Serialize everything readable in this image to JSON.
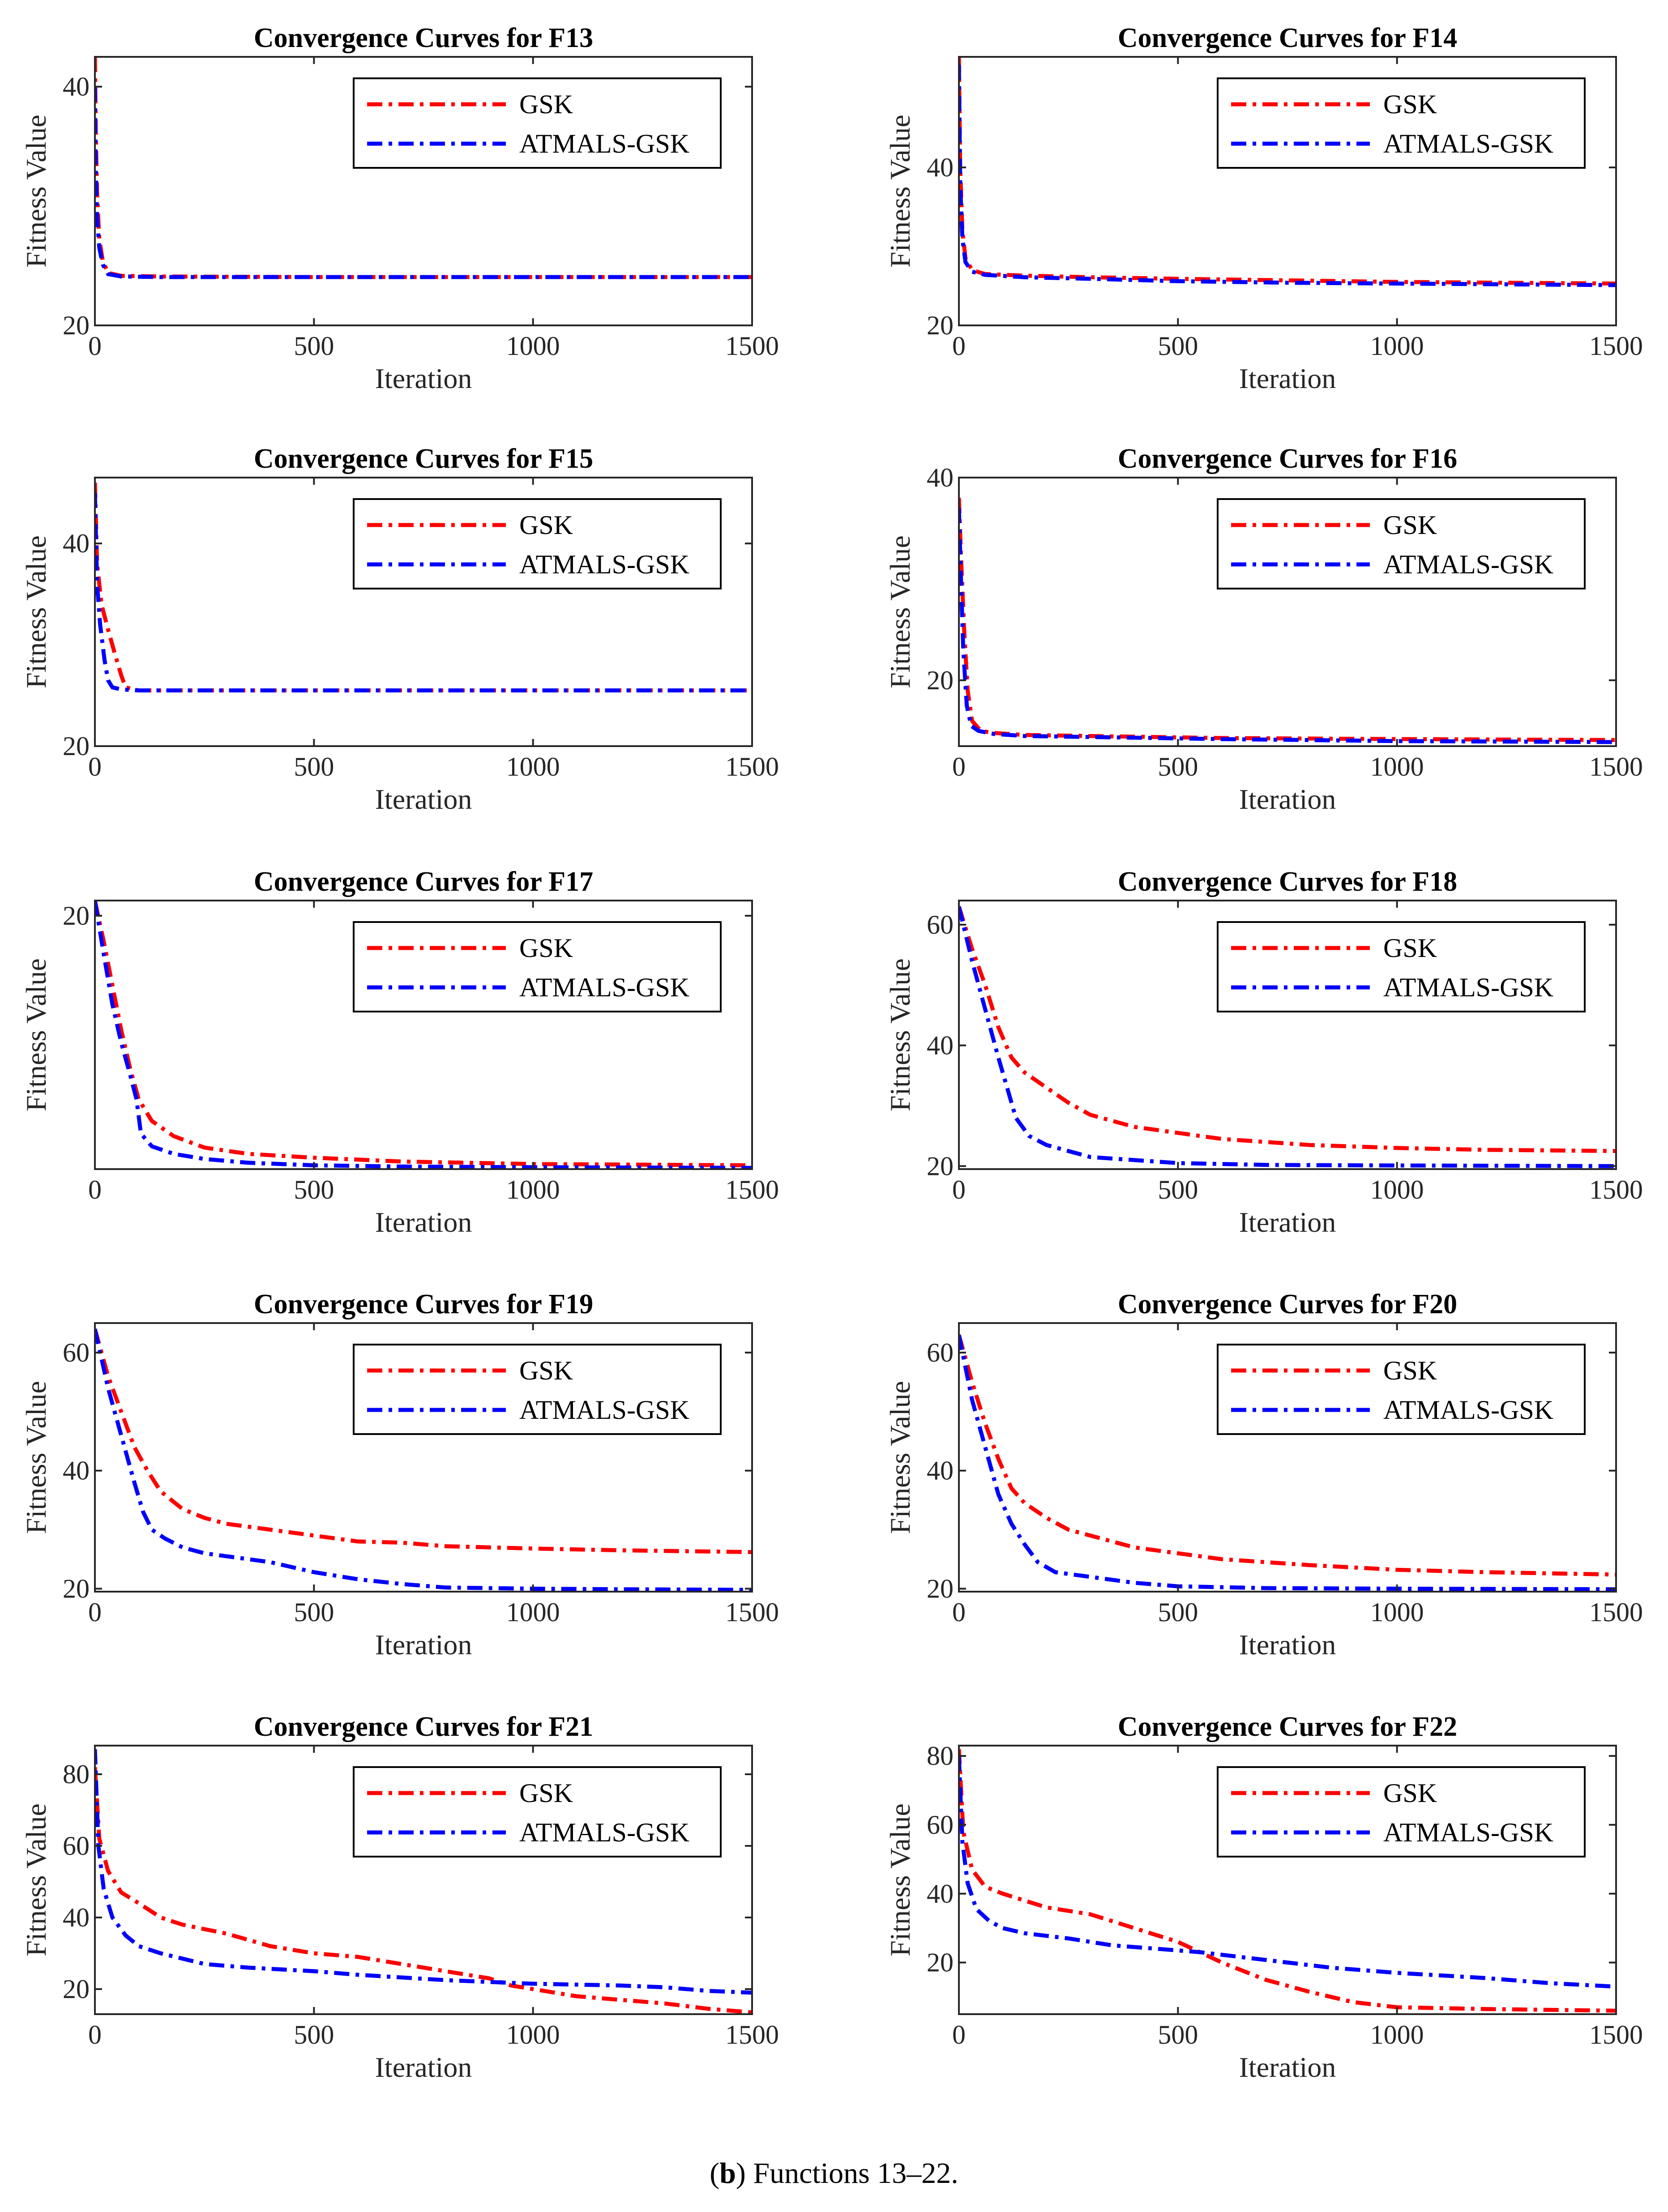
{
  "caption": {
    "label": "b",
    "text": "Functions 13–22."
  },
  "colors": {
    "gsk": "#ff0000",
    "atmals": "#0000ff",
    "axis": "#262626"
  },
  "legend_placement": "top-right",
  "chart_data": [
    {
      "type": "line",
      "title": "Convergence Curves for F13",
      "xlabel": "Iteration",
      "ylabel": "Fitness Value",
      "xlim": [
        0,
        1500
      ],
      "ylim": [
        20,
        42.5
      ],
      "xticks": [
        0,
        500,
        1000,
        1500
      ],
      "yticks": [
        20,
        40
      ],
      "series": [
        {
          "name": "GSK",
          "x": [
            0,
            2,
            5,
            10,
            18,
            30,
            60,
            150,
            500,
            1000,
            1500
          ],
          "y": [
            42.5,
            36,
            31,
            27.2,
            25.4,
            24.4,
            24.15,
            24.1,
            24.05,
            24.05,
            24.05
          ]
        },
        {
          "name": "ATMALS-GSK",
          "x": [
            0,
            2,
            5,
            10,
            18,
            30,
            60,
            150,
            500,
            1000,
            1500
          ],
          "y": [
            40,
            33,
            29,
            26.5,
            25.1,
            24.3,
            24.1,
            24.05,
            24.05,
            24.05,
            24.05
          ]
        }
      ]
    },
    {
      "type": "line",
      "title": "Convergence Curves for F14",
      "xlabel": "Iteration",
      "ylabel": "Fitness Value",
      "xlim": [
        0,
        1500
      ],
      "ylim": [
        20,
        54
      ],
      "xticks": [
        0,
        500,
        1000,
        1500
      ],
      "yticks": [
        20,
        40
      ],
      "series": [
        {
          "name": "GSK",
          "x": [
            0,
            3,
            8,
            15,
            30,
            60,
            150,
            300,
            500,
            750,
            1000,
            1250,
            1500
          ],
          "y": [
            54,
            40,
            32,
            28.5,
            27,
            26.5,
            26.3,
            26.1,
            25.9,
            25.7,
            25.5,
            25.4,
            25.3
          ]
        },
        {
          "name": "ATMALS-GSK",
          "x": [
            0,
            3,
            8,
            15,
            30,
            60,
            150,
            300,
            500,
            750,
            1000,
            1250,
            1500
          ],
          "y": [
            53,
            38,
            31,
            28,
            26.8,
            26.4,
            26.1,
            25.9,
            25.6,
            25.4,
            25.3,
            25.2,
            25.1
          ]
        }
      ]
    },
    {
      "type": "line",
      "title": "Convergence Curves for F15",
      "xlabel": "Iteration",
      "ylabel": "Fitness Value",
      "xlim": [
        0,
        1500
      ],
      "ylim": [
        20,
        46.5
      ],
      "xticks": [
        0,
        500,
        1000,
        1500
      ],
      "yticks": [
        20,
        40
      ],
      "series": [
        {
          "name": "GSK",
          "x": [
            0,
            5,
            15,
            30,
            45,
            60,
            70,
            100,
            300,
            600,
            1000,
            1500
          ],
          "y": [
            46,
            38,
            34,
            31.5,
            29.2,
            27,
            25.8,
            25.5,
            25.5,
            25.5,
            25.5,
            25.5
          ]
        },
        {
          "name": "ATMALS-GSK",
          "x": [
            0,
            5,
            12,
            22,
            30,
            40,
            60,
            100,
            300,
            600,
            1000,
            1500
          ],
          "y": [
            45,
            36,
            32,
            28.5,
            26.5,
            25.8,
            25.6,
            25.5,
            25.5,
            25.5,
            25.5,
            25.5
          ]
        }
      ]
    },
    {
      "type": "line",
      "title": "Convergence Curves for F16",
      "xlabel": "Iteration",
      "ylabel": "Fitness Value",
      "xlim": [
        0,
        1500
      ],
      "ylim": [
        13.5,
        40
      ],
      "xticks": [
        0,
        500,
        1000,
        1500
      ],
      "yticks": [
        20,
        40
      ],
      "series": [
        {
          "name": "GSK",
          "x": [
            0,
            5,
            12,
            20,
            30,
            50,
            80,
            150,
            300,
            600,
            1000,
            1500
          ],
          "y": [
            38,
            32,
            25,
            19,
            16,
            15,
            14.8,
            14.6,
            14.5,
            14.3,
            14.2,
            14.1
          ]
        },
        {
          "name": "ATMALS-GSK",
          "x": [
            0,
            4,
            10,
            18,
            28,
            45,
            80,
            150,
            300,
            600,
            1000,
            1500
          ],
          "y": [
            37,
            31,
            23,
            17.5,
            15.5,
            15,
            14.7,
            14.5,
            14.4,
            14.2,
            14.0,
            13.9
          ]
        }
      ]
    },
    {
      "type": "line",
      "title": "Convergence Curves for F17",
      "xlabel": "Iteration",
      "ylabel": "Fitness Value",
      "xlim": [
        0,
        1500
      ],
      "ylim": [
        0,
        21.2
      ],
      "xticks": [
        0,
        500,
        1000,
        1500
      ],
      "yticks": [
        20
      ],
      "series": [
        {
          "name": "GSK",
          "x": [
            0,
            20,
            40,
            60,
            80,
            100,
            130,
            180,
            250,
            350,
            500,
            700,
            1000,
            1500
          ],
          "y": [
            21.2,
            18,
            14.5,
            11,
            8,
            5.5,
            3.8,
            2.6,
            1.7,
            1.2,
            0.9,
            0.6,
            0.4,
            0.3
          ]
        },
        {
          "name": "ATMALS-GSK",
          "x": [
            0,
            20,
            40,
            60,
            80,
            95,
            105,
            130,
            180,
            250,
            350,
            500,
            700,
            1000,
            1500
          ],
          "y": [
            21.2,
            17,
            13,
            10,
            7.5,
            5.5,
            2.8,
            1.8,
            1.2,
            0.8,
            0.5,
            0.3,
            0.2,
            0.15,
            0.1
          ]
        }
      ]
    },
    {
      "type": "line",
      "title": "Convergence Curves for F18",
      "xlabel": "Iteration",
      "ylabel": "Fitness Value",
      "xlim": [
        0,
        1500
      ],
      "ylim": [
        19.5,
        64
      ],
      "xticks": [
        0,
        500,
        1000,
        1500
      ],
      "yticks": [
        20,
        40,
        60
      ],
      "series": [
        {
          "name": "GSK",
          "x": [
            0,
            30,
            60,
            90,
            120,
            150,
            200,
            250,
            300,
            400,
            500,
            600,
            800,
            1000,
            1200,
            1500
          ],
          "y": [
            63,
            56,
            50,
            43,
            38,
            35.5,
            33,
            30.5,
            28.5,
            26.5,
            25.5,
            24.5,
            23.5,
            23,
            22.7,
            22.5
          ]
        },
        {
          "name": "ATMALS-GSK",
          "x": [
            0,
            30,
            60,
            90,
            110,
            130,
            160,
            200,
            250,
            300,
            400,
            500,
            700,
            1000,
            1500
          ],
          "y": [
            63,
            54,
            46,
            38,
            33,
            28,
            25,
            23.5,
            22.5,
            21.5,
            21,
            20.5,
            20.2,
            20.1,
            20
          ]
        }
      ]
    },
    {
      "type": "line",
      "title": "Convergence Curves for F19",
      "xlabel": "Iteration",
      "ylabel": "Fitness Value",
      "xlim": [
        0,
        1500
      ],
      "ylim": [
        19.5,
        65
      ],
      "xticks": [
        0,
        500,
        1000,
        1500
      ],
      "yticks": [
        20,
        40,
        60
      ],
      "series": [
        {
          "name": "GSK",
          "x": [
            0,
            30,
            60,
            90,
            120,
            150,
            200,
            250,
            300,
            400,
            500,
            600,
            700,
            800,
            1000,
            1200,
            1500
          ],
          "y": [
            64,
            56,
            50,
            44,
            40,
            36.5,
            33.5,
            32,
            31,
            30,
            29,
            28,
            27.8,
            27.2,
            26.8,
            26.5,
            26.2
          ]
        },
        {
          "name": "ATMALS-GSK",
          "x": [
            0,
            30,
            60,
            90,
            110,
            130,
            160,
            200,
            250,
            300,
            400,
            500,
            600,
            700,
            800,
            1000,
            1200,
            1500
          ],
          "y": [
            64,
            54,
            46,
            38,
            33,
            30,
            28.5,
            27,
            26,
            25.5,
            24.5,
            22.8,
            21.6,
            20.8,
            20.2,
            20,
            19.9,
            19.8
          ]
        }
      ]
    },
    {
      "type": "line",
      "title": "Convergence Curves for F20",
      "xlabel": "Iteration",
      "ylabel": "Fitness Value",
      "xlim": [
        0,
        1500
      ],
      "ylim": [
        19.5,
        65
      ],
      "xticks": [
        0,
        500,
        1000,
        1500
      ],
      "yticks": [
        20,
        40,
        60
      ],
      "series": [
        {
          "name": "GSK",
          "x": [
            0,
            30,
            60,
            90,
            120,
            150,
            200,
            250,
            300,
            400,
            500,
            600,
            800,
            1000,
            1200,
            1500
          ],
          "y": [
            63,
            55,
            48,
            42,
            37,
            34.5,
            32,
            30,
            29,
            27,
            26,
            25,
            24,
            23.2,
            22.8,
            22.4
          ]
        },
        {
          "name": "ATMALS-GSK",
          "x": [
            0,
            30,
            60,
            90,
            120,
            150,
            180,
            220,
            300,
            400,
            500,
            700,
            1000,
            1500
          ],
          "y": [
            63,
            52,
            44,
            36,
            31,
            27.5,
            24.5,
            22.8,
            22,
            21,
            20.4,
            20.1,
            20,
            19.9
          ]
        }
      ]
    },
    {
      "type": "line",
      "title": "Convergence Curves for F21",
      "xlabel": "Iteration",
      "ylabel": "Fitness Value",
      "xlim": [
        0,
        1500
      ],
      "ylim": [
        13,
        88
      ],
      "xticks": [
        0,
        500,
        1000,
        1500
      ],
      "yticks": [
        20,
        40,
        60,
        80
      ],
      "series": [
        {
          "name": "GSK",
          "x": [
            0,
            10,
            30,
            60,
            100,
            150,
            200,
            300,
            400,
            500,
            600,
            700,
            800,
            900,
            950,
            1000,
            1100,
            1200,
            1300,
            1400,
            1500
          ],
          "y": [
            82,
            62,
            53,
            47,
            44,
            40,
            38,
            35.5,
            32,
            30,
            29,
            27,
            25,
            23,
            21,
            20,
            18,
            17,
            16,
            14.5,
            13.5
          ]
        },
        {
          "name": "ATMALS-GSK",
          "x": [
            0,
            8,
            20,
            40,
            70,
            100,
            150,
            250,
            350,
            500,
            600,
            800,
            1000,
            1200,
            1300,
            1400,
            1500
          ],
          "y": [
            87,
            60,
            48,
            40,
            35,
            32,
            30,
            27,
            26,
            25,
            24,
            22.5,
            21.5,
            21,
            20.5,
            19.5,
            19
          ]
        }
      ]
    },
    {
      "type": "line",
      "title": "Convergence Curves for F22",
      "xlabel": "Iteration",
      "ylabel": "Fitness Value",
      "xlim": [
        0,
        1500
      ],
      "ylim": [
        5,
        83
      ],
      "xticks": [
        0,
        500,
        1000,
        1500
      ],
      "yticks": [
        20,
        40,
        60,
        80
      ],
      "series": [
        {
          "name": "GSK",
          "x": [
            0,
            10,
            30,
            60,
            100,
            150,
            200,
            300,
            400,
            500,
            550,
            600,
            700,
            800,
            900,
            1000,
            1200,
            1500
          ],
          "y": [
            82,
            58,
            47,
            42,
            40,
            38,
            36,
            34,
            30,
            26,
            23,
            20,
            15,
            11.5,
            8.5,
            7,
            6.5,
            6
          ]
        },
        {
          "name": "ATMALS-GSK",
          "x": [
            0,
            8,
            20,
            40,
            70,
            100,
            150,
            250,
            350,
            450,
            550,
            650,
            750,
            850,
            1000,
            1200,
            1350,
            1500
          ],
          "y": [
            80,
            55,
            43,
            35.5,
            32,
            30,
            28.5,
            27,
            25,
            24,
            23,
            21.5,
            20,
            18.5,
            17,
            15.5,
            14,
            13
          ]
        }
      ]
    }
  ]
}
